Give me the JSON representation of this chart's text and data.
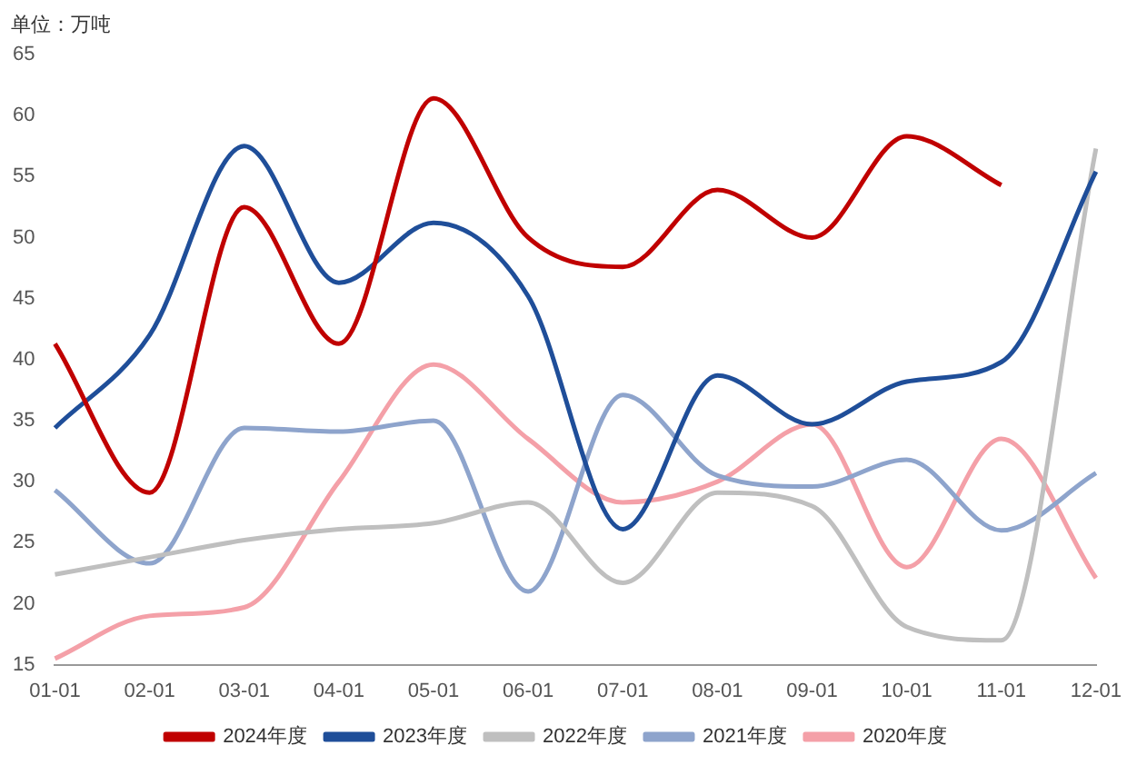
{
  "chart_data": {
    "type": "line",
    "ylabel": "单位：万吨",
    "categories": [
      "01-01",
      "02-01",
      "03-01",
      "04-01",
      "05-01",
      "06-01",
      "07-01",
      "08-01",
      "09-01",
      "10-01",
      "11-01",
      "12-01"
    ],
    "series": [
      {
        "name": "2024年度",
        "color": "#c00000",
        "values": [
          41.3,
          29.1,
          52.5,
          41.3,
          61.4,
          50,
          47.6,
          53.9,
          50,
          58.3,
          54.3,
          null
        ]
      },
      {
        "name": "2023年度",
        "color": "#1f4e99",
        "values": [
          34.4,
          42,
          57.5,
          46.3,
          51.2,
          45.2,
          26.1,
          38.7,
          34.7,
          38.2,
          39.8,
          55.4
        ]
      },
      {
        "name": "2022年度",
        "color": "#bfbfbf",
        "values": [
          22.4,
          23.8,
          25.2,
          26.1,
          26.6,
          28.3,
          21.7,
          29.1,
          28,
          18.1,
          17,
          57.3
        ]
      },
      {
        "name": "2021年度",
        "color": "#8ea4cc",
        "values": [
          29.3,
          23.3,
          34.4,
          34.1,
          35,
          21,
          37.1,
          30.5,
          29.6,
          31.8,
          26,
          30.7
        ]
      },
      {
        "name": "2020年度",
        "color": "#f4a0a8",
        "values": [
          15.5,
          19,
          19.7,
          30,
          39.6,
          33.5,
          28.3,
          30,
          34.7,
          23,
          33.5,
          22.1
        ]
      }
    ],
    "ylim": [
      15,
      65
    ],
    "yticks": [
      15,
      20,
      25,
      30,
      35,
      40,
      45,
      50,
      55,
      60,
      65
    ],
    "grid": false,
    "legend": "bottom",
    "marker": "none",
    "line_style": "solid"
  }
}
